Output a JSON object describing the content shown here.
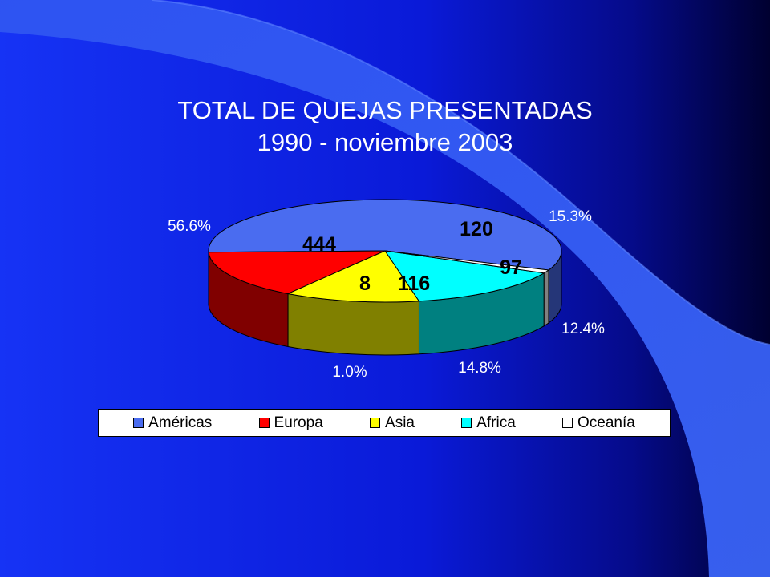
{
  "slide": {
    "title_line1": "TOTAL DE QUEJAS PRESENTADAS",
    "title_line2": "1990 - noviembre 2003"
  },
  "colors": {
    "background_left": "#1633f5",
    "background_right": "#000030",
    "swoosh": "#3a60f0",
    "text": "#ffffff"
  },
  "chart_data": {
    "type": "pie",
    "title": "TOTAL DE QUEJAS PRESENTADAS 1990 - noviembre 2003",
    "categories": [
      "Américas",
      "Europa",
      "Asia",
      "Africa",
      "Oceanía"
    ],
    "values": [
      444,
      120,
      97,
      116,
      8
    ],
    "percent_labels": [
      "56.6%",
      "15.3%",
      "12.4%",
      "14.8%",
      "1.0%"
    ],
    "value_labels": [
      "444",
      "120",
      "97",
      "116",
      "8"
    ],
    "colors": [
      "#4a6cf0",
      "#ff0000",
      "#ffff00",
      "#00ffff",
      "#ffffff"
    ],
    "legend_position": "bottom",
    "style": "3d"
  }
}
